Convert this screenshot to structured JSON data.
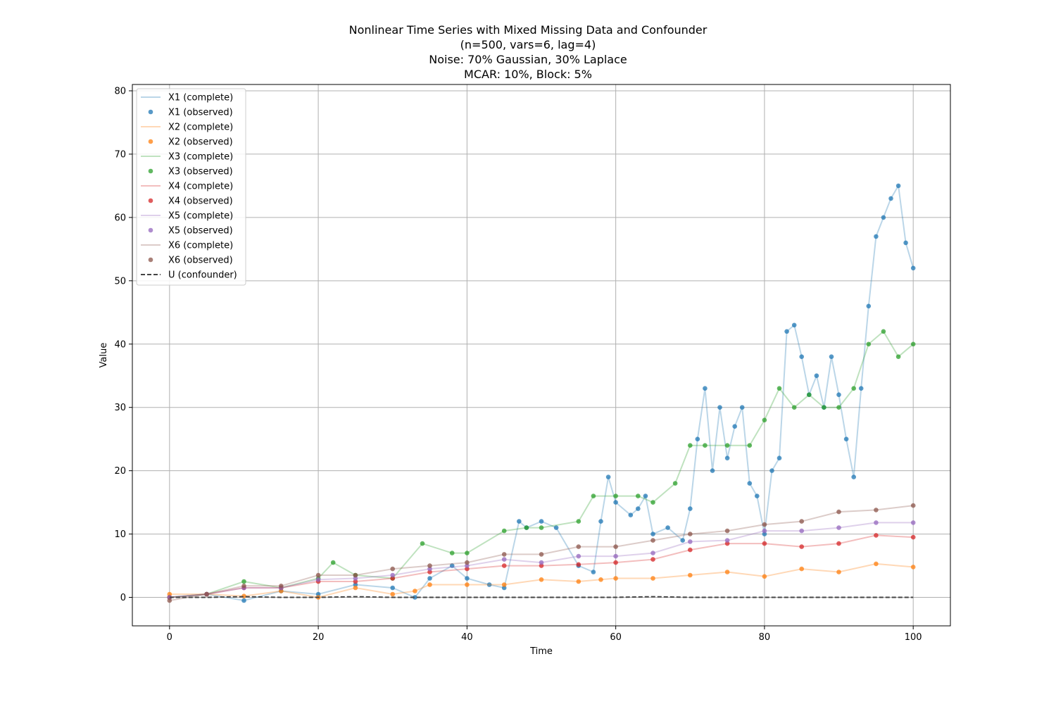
{
  "chart_data": {
    "type": "line",
    "title_lines": [
      "Nonlinear Time Series with Mixed Missing Data and Confounder",
      "(n=500, vars=6, lag=4)",
      "Noise: 70% Gaussian, 30% Laplace",
      "MCAR: 10%, Block: 5%"
    ],
    "xlabel": "Time",
    "ylabel": "Value",
    "xlim": [
      -5,
      105
    ],
    "ylim": [
      -4.5,
      81
    ],
    "xticks": [
      0,
      20,
      40,
      60,
      80,
      100
    ],
    "yticks": [
      0,
      10,
      20,
      30,
      40,
      50,
      60,
      70,
      80
    ],
    "grid": true,
    "legend_position": "top-left",
    "legend": [
      {
        "label": "X1 (complete)",
        "kind": "line",
        "series": "X1"
      },
      {
        "label": "X1 (observed)",
        "kind": "marker",
        "series": "X1"
      },
      {
        "label": "X2 (complete)",
        "kind": "line",
        "series": "X2"
      },
      {
        "label": "X2 (observed)",
        "kind": "marker",
        "series": "X2"
      },
      {
        "label": "X3 (complete)",
        "kind": "line",
        "series": "X3"
      },
      {
        "label": "X3 (observed)",
        "kind": "marker",
        "series": "X3"
      },
      {
        "label": "X4 (complete)",
        "kind": "line",
        "series": "X4"
      },
      {
        "label": "X4 (observed)",
        "kind": "marker",
        "series": "X4"
      },
      {
        "label": "X5 (complete)",
        "kind": "line",
        "series": "X5"
      },
      {
        "label": "X5 (observed)",
        "kind": "marker",
        "series": "X5"
      },
      {
        "label": "X6 (complete)",
        "kind": "line",
        "series": "X6"
      },
      {
        "label": "X6 (observed)",
        "kind": "marker",
        "series": "X6"
      },
      {
        "label": "U (confounder)",
        "kind": "dashed",
        "series": "U"
      }
    ],
    "series": [
      {
        "name": "X1",
        "color": "#1f77b4",
        "x": [
          0,
          5,
          10,
          15,
          20,
          25,
          30,
          33,
          35,
          38,
          40,
          43,
          45,
          47,
          48,
          50,
          52,
          55,
          57,
          58,
          59,
          60,
          62,
          63,
          64,
          65,
          67,
          69,
          70,
          71,
          72,
          73,
          74,
          75,
          76,
          77,
          78,
          79,
          80,
          81,
          82,
          83,
          84,
          85,
          86,
          87,
          88,
          89,
          90,
          91,
          92,
          93,
          94,
          95,
          96,
          97,
          98,
          99,
          100
        ],
        "y": [
          0,
          0.5,
          -0.5,
          1,
          0.5,
          2,
          1.5,
          0,
          3,
          5,
          3,
          2,
          1.5,
          12,
          11,
          12,
          11,
          5,
          4,
          12,
          19,
          15,
          13,
          14,
          16,
          10,
          11,
          9,
          14,
          25,
          33,
          20,
          30,
          22,
          27,
          30,
          18,
          16,
          10,
          20,
          22,
          42,
          43,
          38,
          32,
          35,
          30,
          38,
          32,
          25,
          19,
          33,
          46,
          57,
          60,
          63,
          65,
          56,
          52
        ]
      },
      {
        "name": "X2",
        "color": "#ff7f0e",
        "x": [
          0,
          5,
          10,
          15,
          20,
          25,
          30,
          33,
          35,
          40,
          45,
          50,
          55,
          58,
          60,
          65,
          70,
          75,
          80,
          85,
          90,
          95,
          100
        ],
        "y": [
          0.5,
          0.5,
          0.2,
          1,
          0,
          1.5,
          0.5,
          1,
          2,
          2,
          2,
          2.8,
          2.5,
          2.8,
          3,
          3,
          3.5,
          4,
          3.3,
          4.5,
          4,
          5.3,
          4.8
        ]
      },
      {
        "name": "X3",
        "color": "#2ca02c",
        "x": [
          0,
          5,
          10,
          15,
          20,
          22,
          25,
          30,
          34,
          38,
          40,
          45,
          48,
          50,
          55,
          57,
          60,
          63,
          65,
          68,
          70,
          72,
          75,
          78,
          80,
          82,
          84,
          86,
          88,
          90,
          92,
          94,
          96,
          98,
          100
        ],
        "y": [
          0,
          0.5,
          2.5,
          1.5,
          3,
          5.5,
          3.5,
          3,
          8.5,
          7,
          7,
          10.5,
          11,
          11,
          12,
          16,
          16,
          16,
          15,
          18,
          24,
          24,
          24,
          24,
          28,
          33,
          30,
          32,
          30,
          30,
          33,
          40,
          42,
          38,
          40
        ]
      },
      {
        "name": "X4",
        "color": "#d62728",
        "x": [
          0,
          5,
          10,
          15,
          20,
          25,
          30,
          35,
          40,
          45,
          50,
          55,
          60,
          65,
          70,
          75,
          80,
          85,
          90,
          95,
          100
        ],
        "y": [
          0,
          0.5,
          1.5,
          1.5,
          2.5,
          2.5,
          3,
          4,
          4.5,
          5,
          5,
          5.2,
          5.5,
          6,
          7.5,
          8.5,
          8.5,
          8,
          8.5,
          9.8,
          9.5
        ]
      },
      {
        "name": "X5",
        "color": "#9467bd",
        "x": [
          0,
          5,
          10,
          15,
          20,
          25,
          30,
          35,
          40,
          45,
          50,
          55,
          60,
          65,
          70,
          75,
          80,
          85,
          90,
          95,
          100
        ],
        "y": [
          0,
          0.5,
          1.5,
          1.5,
          2.8,
          3,
          3.5,
          4.5,
          5,
          6,
          5.5,
          6.5,
          6.5,
          7,
          8.8,
          9,
          10.5,
          10.5,
          11,
          11.8,
          11.8
        ]
      },
      {
        "name": "X6",
        "color": "#8c564b",
        "x": [
          0,
          5,
          10,
          15,
          20,
          25,
          30,
          35,
          40,
          45,
          50,
          55,
          60,
          65,
          70,
          75,
          80,
          85,
          90,
          95,
          100
        ],
        "y": [
          -0.5,
          0.5,
          1.8,
          1.8,
          3.5,
          3.5,
          4.5,
          5,
          5.5,
          6.8,
          6.8,
          8,
          8,
          9,
          10,
          10.5,
          11.5,
          12,
          13.5,
          13.8,
          14.5
        ]
      },
      {
        "name": "U",
        "color": "#444444",
        "x": [
          0,
          5,
          10,
          15,
          20,
          25,
          30,
          35,
          40,
          45,
          50,
          55,
          60,
          65,
          70,
          75,
          80,
          85,
          90,
          95,
          100
        ],
        "y": [
          0,
          0,
          0.1,
          0,
          0,
          0.1,
          0,
          0,
          0,
          0,
          0,
          0,
          0,
          0.1,
          0,
          0,
          0,
          0,
          0,
          0,
          0
        ]
      }
    ]
  }
}
